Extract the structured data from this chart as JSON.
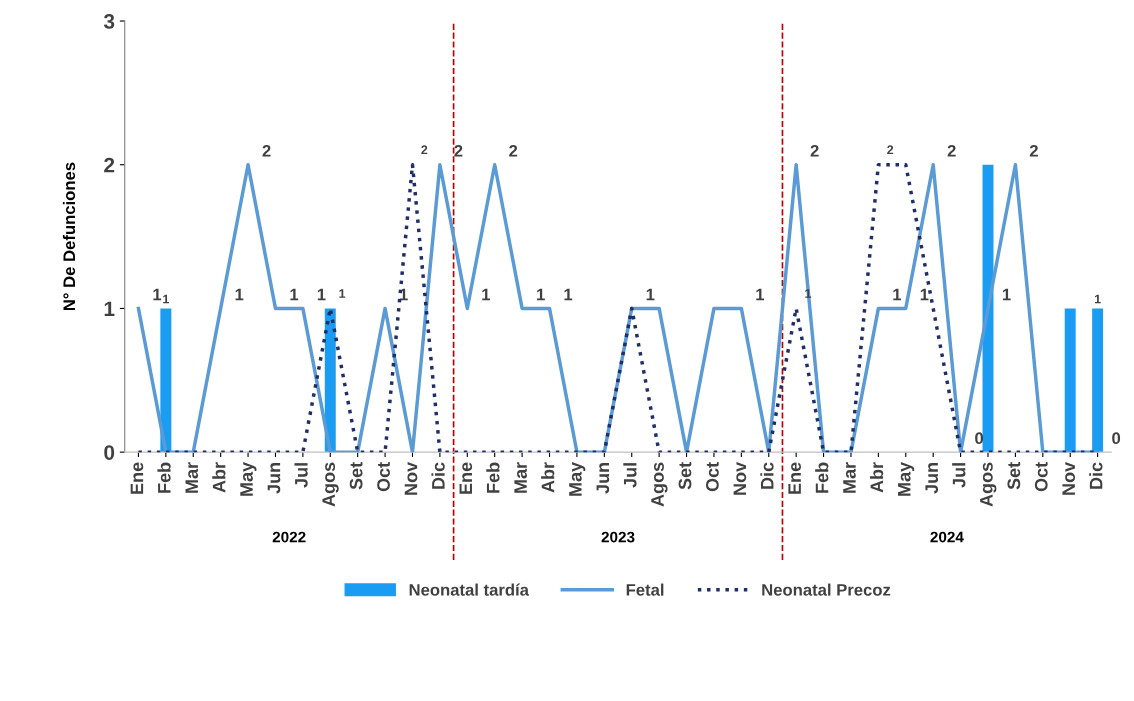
{
  "chart_data": {
    "type": "line",
    "ylabel": "N° De Defunciones",
    "categories": [
      "Ene",
      "Feb",
      "Mar",
      "Abr",
      "May",
      "Jun",
      "Jul",
      "Agos",
      "Set",
      "Oct",
      "Nov",
      "Dic",
      "Ene",
      "Feb",
      "Mar",
      "Abr",
      "May",
      "Jun",
      "Jul",
      "Agos",
      "Set",
      "Oct",
      "Nov",
      "Dic",
      "Ene",
      "Feb",
      "Mar",
      "Abr",
      "May",
      "Jun",
      "Jul",
      "Agos",
      "Set",
      "Oct",
      "Nov",
      "Dic"
    ],
    "ylim": [
      0,
      3
    ],
    "yticks": [
      0,
      1,
      2,
      3
    ],
    "grid": false,
    "legend": "bottom",
    "annotations": [
      "2022",
      "2023",
      "2024"
    ],
    "series": [
      {
        "name": "Neonatal tardía",
        "type": "bar",
        "color": "#1a9cf2",
        "values": [
          0,
          1,
          0,
          0,
          0,
          0,
          0,
          1,
          0,
          0,
          0,
          0,
          0,
          0,
          0,
          0,
          0,
          0,
          0,
          0,
          0,
          0,
          0,
          0,
          0,
          0,
          0,
          0,
          0,
          0,
          0,
          2,
          0,
          0,
          1,
          1
        ],
        "value_labels": [
          null,
          "1",
          null,
          null,
          null,
          null,
          null,
          null,
          null,
          null,
          null,
          null,
          null,
          null,
          null,
          null,
          null,
          null,
          null,
          null,
          null,
          null,
          null,
          null,
          null,
          null,
          null,
          null,
          null,
          null,
          null,
          null,
          null,
          null,
          null,
          "1"
        ]
      },
      {
        "name": "Fetal",
        "color": "#5b9bd5",
        "line_style": "solid",
        "values": [
          1,
          0,
          0,
          1,
          2,
          1,
          1,
          0,
          0,
          1,
          0,
          2,
          1,
          2,
          1,
          1,
          0,
          0,
          1,
          1,
          0,
          1,
          1,
          0,
          2,
          0,
          0,
          1,
          1,
          2,
          0,
          1,
          2,
          0,
          0,
          0
        ],
        "value_labels": [
          "1",
          null,
          null,
          "1",
          "2",
          "1",
          "1",
          null,
          null,
          "1",
          null,
          "2",
          "1",
          "2",
          "1",
          "1",
          null,
          null,
          "1",
          null,
          null,
          null,
          "1",
          null,
          "2",
          null,
          null,
          "1",
          "1",
          "2",
          "0",
          "1",
          "2",
          null,
          null,
          "0"
        ]
      },
      {
        "name": "Neonatal Precoz",
        "color": "#1f2d6b",
        "line_style": "dotted",
        "values": [
          0,
          0,
          0,
          0,
          0,
          0,
          0,
          1,
          0,
          0,
          2,
          0,
          0,
          0,
          0,
          0,
          0,
          0,
          1,
          0,
          0,
          0,
          0,
          0,
          1,
          0,
          0,
          2,
          2,
          1,
          0,
          0,
          0,
          0,
          0,
          0
        ],
        "value_labels": [
          null,
          null,
          null,
          null,
          null,
          null,
          null,
          "1",
          null,
          null,
          "2",
          null,
          null,
          null,
          null,
          null,
          null,
          null,
          null,
          null,
          null,
          null,
          null,
          null,
          "1",
          null,
          null,
          "2",
          null,
          null,
          null,
          null,
          null,
          null,
          null,
          null
        ]
      }
    ]
  }
}
